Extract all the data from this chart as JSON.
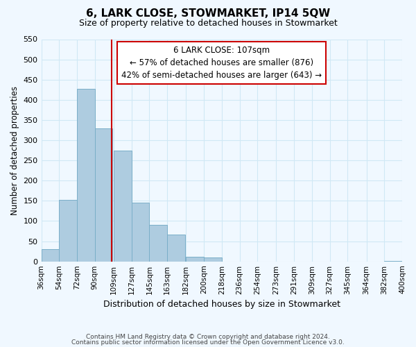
{
  "title": "6, LARK CLOSE, STOWMARKET, IP14 5QW",
  "subtitle": "Size of property relative to detached houses in Stowmarket",
  "xlabel": "Distribution of detached houses by size in Stowmarket",
  "ylabel": "Number of detached properties",
  "bar_left_edges": [
    36,
    54,
    72,
    90,
    109,
    127,
    145,
    163,
    182,
    200,
    218,
    236,
    254,
    273,
    291,
    309,
    327,
    345,
    364,
    382
  ],
  "bar_widths": [
    18,
    18,
    18,
    18,
    18,
    18,
    18,
    18,
    18,
    18,
    18,
    18,
    18,
    18,
    18,
    18,
    18,
    18,
    18,
    18
  ],
  "bar_heights": [
    30,
    153,
    428,
    330,
    275,
    145,
    90,
    67,
    12,
    10,
    0,
    0,
    0,
    0,
    0,
    0,
    0,
    0,
    0,
    2
  ],
  "bar_color": "#aecce0",
  "bar_edge_color": "#7aaec8",
  "property_line_x": 107,
  "property_line_color": "#cc0000",
  "annotation_line1": "6 LARK CLOSE: 107sqm",
  "annotation_line2": "← 57% of detached houses are smaller (876)",
  "annotation_line3": "42% of semi-detached houses are larger (643) →",
  "annotation_box_color": "#ffffff",
  "annotation_box_edge": "#cc0000",
  "ylim": [
    0,
    550
  ],
  "yticks": [
    0,
    50,
    100,
    150,
    200,
    250,
    300,
    350,
    400,
    450,
    500,
    550
  ],
  "xtick_labels": [
    "36sqm",
    "54sqm",
    "72sqm",
    "90sqm",
    "109sqm",
    "127sqm",
    "145sqm",
    "163sqm",
    "182sqm",
    "200sqm",
    "218sqm",
    "236sqm",
    "254sqm",
    "273sqm",
    "291sqm",
    "309sqm",
    "327sqm",
    "345sqm",
    "364sqm",
    "382sqm",
    "400sqm"
  ],
  "xtick_positions": [
    36,
    54,
    72,
    90,
    109,
    127,
    145,
    163,
    182,
    200,
    218,
    236,
    254,
    273,
    291,
    309,
    327,
    345,
    364,
    382,
    400
  ],
  "grid_color": "#d0e8f5",
  "background_color": "#f0f8ff",
  "footer_line1": "Contains HM Land Registry data © Crown copyright and database right 2024.",
  "footer_line2": "Contains public sector information licensed under the Open Government Licence v3.0."
}
